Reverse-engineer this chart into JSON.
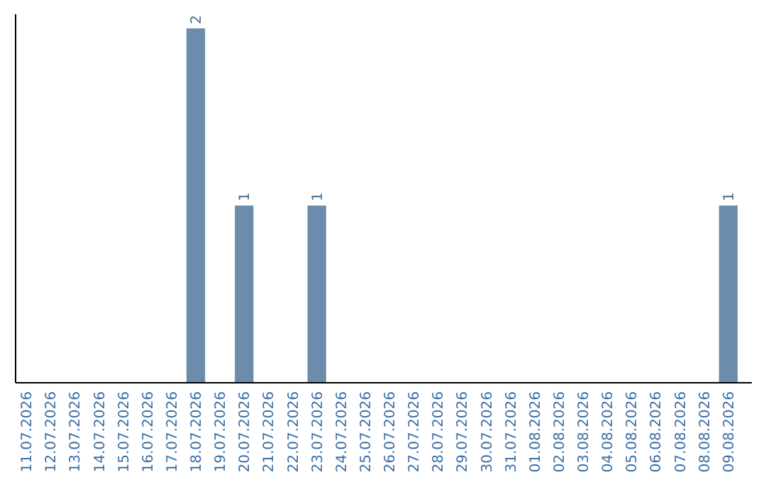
{
  "chart_data": {
    "type": "bar",
    "relative": false,
    "categories": [
      "11.07.2026",
      "12.07.2026",
      "13.07.2026",
      "14.07.2026",
      "15.07.2026",
      "16.07.2026",
      "17.07.2026",
      "18.07.2026",
      "19.07.2026",
      "20.07.2026",
      "21.07.2026",
      "22.07.2026",
      "23.07.2026",
      "24.07.2026",
      "25.07.2026",
      "26.07.2026",
      "27.07.2026",
      "28.07.2026",
      "29.07.2026",
      "30.07.2026",
      "31.07.2026",
      "01.08.2026",
      "02.08.2026",
      "03.08.2026",
      "04.08.2026",
      "05.08.2026",
      "06.08.2026",
      "07.08.2026",
      "08.08.2026",
      "09.08.2026"
    ],
    "values": [
      0,
      0,
      0,
      0,
      0,
      0,
      0,
      2,
      0,
      1,
      0,
      0,
      1,
      0,
      0,
      0,
      0,
      0,
      0,
      0,
      0,
      0,
      0,
      0,
      0,
      0,
      0,
      0,
      0,
      1
    ],
    "value_labels": [
      null,
      null,
      null,
      null,
      null,
      null,
      null,
      "2",
      null,
      "1",
      null,
      null,
      "1",
      null,
      null,
      null,
      null,
      null,
      null,
      null,
      null,
      null,
      null,
      null,
      null,
      null,
      null,
      null,
      null,
      "1"
    ],
    "color": "#6b8cab"
  }
}
